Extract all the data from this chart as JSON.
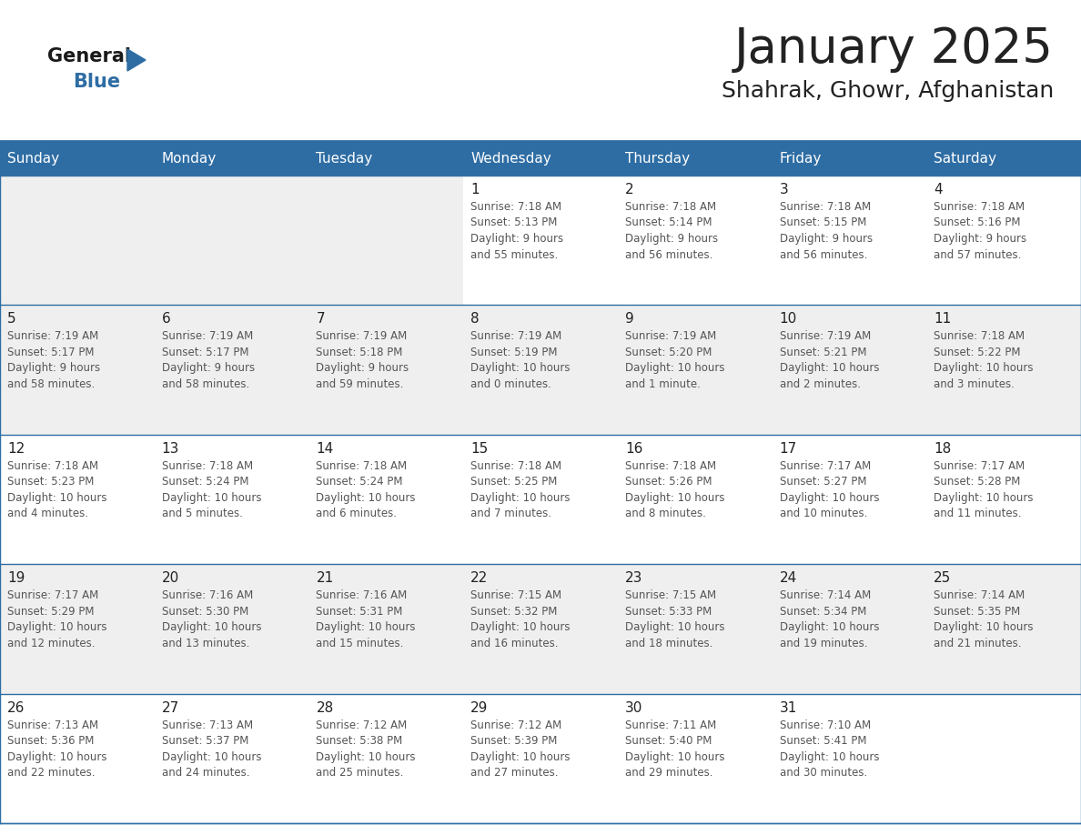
{
  "title": "January 2025",
  "subtitle": "Shahrak, Ghowr, Afghanistan",
  "days_of_week": [
    "Sunday",
    "Monday",
    "Tuesday",
    "Wednesday",
    "Thursday",
    "Friday",
    "Saturday"
  ],
  "header_bg": "#2E6DA4",
  "header_text": "#FFFFFF",
  "cell_bg_odd": "#EFEFEF",
  "cell_bg_even": "#FFFFFF",
  "cell_bg_empty_first": "#E8E8E8",
  "grid_line_color": "#2E6DA4",
  "text_color": "#555555",
  "day_num_color": "#222222",
  "title_color": "#222222",
  "subtitle_color": "#222222",
  "logo_general_color": "#1a1a1a",
  "logo_blue_color": "#2E6DA4",
  "calendar_data": [
    [
      {
        "day": null,
        "info": ""
      },
      {
        "day": null,
        "info": ""
      },
      {
        "day": null,
        "info": ""
      },
      {
        "day": 1,
        "info": "Sunrise: 7:18 AM\nSunset: 5:13 PM\nDaylight: 9 hours\nand 55 minutes."
      },
      {
        "day": 2,
        "info": "Sunrise: 7:18 AM\nSunset: 5:14 PM\nDaylight: 9 hours\nand 56 minutes."
      },
      {
        "day": 3,
        "info": "Sunrise: 7:18 AM\nSunset: 5:15 PM\nDaylight: 9 hours\nand 56 minutes."
      },
      {
        "day": 4,
        "info": "Sunrise: 7:18 AM\nSunset: 5:16 PM\nDaylight: 9 hours\nand 57 minutes."
      }
    ],
    [
      {
        "day": 5,
        "info": "Sunrise: 7:19 AM\nSunset: 5:17 PM\nDaylight: 9 hours\nand 58 minutes."
      },
      {
        "day": 6,
        "info": "Sunrise: 7:19 AM\nSunset: 5:17 PM\nDaylight: 9 hours\nand 58 minutes."
      },
      {
        "day": 7,
        "info": "Sunrise: 7:19 AM\nSunset: 5:18 PM\nDaylight: 9 hours\nand 59 minutes."
      },
      {
        "day": 8,
        "info": "Sunrise: 7:19 AM\nSunset: 5:19 PM\nDaylight: 10 hours\nand 0 minutes."
      },
      {
        "day": 9,
        "info": "Sunrise: 7:19 AM\nSunset: 5:20 PM\nDaylight: 10 hours\nand 1 minute."
      },
      {
        "day": 10,
        "info": "Sunrise: 7:19 AM\nSunset: 5:21 PM\nDaylight: 10 hours\nand 2 minutes."
      },
      {
        "day": 11,
        "info": "Sunrise: 7:18 AM\nSunset: 5:22 PM\nDaylight: 10 hours\nand 3 minutes."
      }
    ],
    [
      {
        "day": 12,
        "info": "Sunrise: 7:18 AM\nSunset: 5:23 PM\nDaylight: 10 hours\nand 4 minutes."
      },
      {
        "day": 13,
        "info": "Sunrise: 7:18 AM\nSunset: 5:24 PM\nDaylight: 10 hours\nand 5 minutes."
      },
      {
        "day": 14,
        "info": "Sunrise: 7:18 AM\nSunset: 5:24 PM\nDaylight: 10 hours\nand 6 minutes."
      },
      {
        "day": 15,
        "info": "Sunrise: 7:18 AM\nSunset: 5:25 PM\nDaylight: 10 hours\nand 7 minutes."
      },
      {
        "day": 16,
        "info": "Sunrise: 7:18 AM\nSunset: 5:26 PM\nDaylight: 10 hours\nand 8 minutes."
      },
      {
        "day": 17,
        "info": "Sunrise: 7:17 AM\nSunset: 5:27 PM\nDaylight: 10 hours\nand 10 minutes."
      },
      {
        "day": 18,
        "info": "Sunrise: 7:17 AM\nSunset: 5:28 PM\nDaylight: 10 hours\nand 11 minutes."
      }
    ],
    [
      {
        "day": 19,
        "info": "Sunrise: 7:17 AM\nSunset: 5:29 PM\nDaylight: 10 hours\nand 12 minutes."
      },
      {
        "day": 20,
        "info": "Sunrise: 7:16 AM\nSunset: 5:30 PM\nDaylight: 10 hours\nand 13 minutes."
      },
      {
        "day": 21,
        "info": "Sunrise: 7:16 AM\nSunset: 5:31 PM\nDaylight: 10 hours\nand 15 minutes."
      },
      {
        "day": 22,
        "info": "Sunrise: 7:15 AM\nSunset: 5:32 PM\nDaylight: 10 hours\nand 16 minutes."
      },
      {
        "day": 23,
        "info": "Sunrise: 7:15 AM\nSunset: 5:33 PM\nDaylight: 10 hours\nand 18 minutes."
      },
      {
        "day": 24,
        "info": "Sunrise: 7:14 AM\nSunset: 5:34 PM\nDaylight: 10 hours\nand 19 minutes."
      },
      {
        "day": 25,
        "info": "Sunrise: 7:14 AM\nSunset: 5:35 PM\nDaylight: 10 hours\nand 21 minutes."
      }
    ],
    [
      {
        "day": 26,
        "info": "Sunrise: 7:13 AM\nSunset: 5:36 PM\nDaylight: 10 hours\nand 22 minutes."
      },
      {
        "day": 27,
        "info": "Sunrise: 7:13 AM\nSunset: 5:37 PM\nDaylight: 10 hours\nand 24 minutes."
      },
      {
        "day": 28,
        "info": "Sunrise: 7:12 AM\nSunset: 5:38 PM\nDaylight: 10 hours\nand 25 minutes."
      },
      {
        "day": 29,
        "info": "Sunrise: 7:12 AM\nSunset: 5:39 PM\nDaylight: 10 hours\nand 27 minutes."
      },
      {
        "day": 30,
        "info": "Sunrise: 7:11 AM\nSunset: 5:40 PM\nDaylight: 10 hours\nand 29 minutes."
      },
      {
        "day": 31,
        "info": "Sunrise: 7:10 AM\nSunset: 5:41 PM\nDaylight: 10 hours\nand 30 minutes."
      },
      {
        "day": null,
        "info": ""
      }
    ]
  ]
}
